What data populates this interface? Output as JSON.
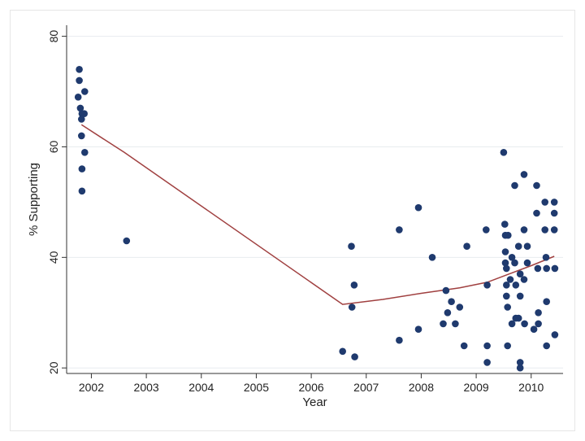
{
  "chart_data": {
    "type": "scatter",
    "xlabel": "Year",
    "ylabel": "% Supporting",
    "xlim": [
      2001.55,
      2010.58
    ],
    "ylim": [
      19,
      82
    ],
    "xticks": [
      2002,
      2003,
      2004,
      2005,
      2006,
      2007,
      2008,
      2009,
      2010
    ],
    "yticks": [
      20,
      40,
      60,
      80
    ],
    "grid": "horizontal",
    "colors": {
      "points": "#1f3a6e",
      "fit_line": "#a04040",
      "grid": "#e8ecef",
      "axis": "#333333"
    },
    "series": [
      {
        "type": "scatter",
        "points": [
          [
            2001.78,
            74
          ],
          [
            2001.78,
            72
          ],
          [
            2001.76,
            69
          ],
          [
            2001.8,
            67
          ],
          [
            2001.83,
            66
          ],
          [
            2001.87,
            66
          ],
          [
            2001.82,
            65
          ],
          [
            2001.88,
            70
          ],
          [
            2001.82,
            62
          ],
          [
            2001.88,
            59
          ],
          [
            2001.83,
            56
          ],
          [
            2001.83,
            52
          ],
          [
            2002.64,
            43
          ],
          [
            2006.57,
            23
          ],
          [
            2006.73,
            42
          ],
          [
            2006.74,
            31
          ],
          [
            2006.78,
            35
          ],
          [
            2006.79,
            22
          ],
          [
            2007.6,
            45
          ],
          [
            2007.6,
            25
          ],
          [
            2007.95,
            49
          ],
          [
            2007.95,
            27
          ],
          [
            2008.2,
            40
          ],
          [
            2008.4,
            28
          ],
          [
            2008.45,
            34
          ],
          [
            2008.48,
            30
          ],
          [
            2008.55,
            32
          ],
          [
            2008.62,
            28
          ],
          [
            2008.7,
            31
          ],
          [
            2008.78,
            24
          ],
          [
            2008.83,
            42
          ],
          [
            2009.18,
            45
          ],
          [
            2009.2,
            35
          ],
          [
            2009.2,
            24
          ],
          [
            2009.2,
            21
          ],
          [
            2009.5,
            59
          ],
          [
            2009.52,
            46
          ],
          [
            2009.53,
            44
          ],
          [
            2009.53,
            41
          ],
          [
            2009.53,
            39
          ],
          [
            2009.55,
            38
          ],
          [
            2009.55,
            35
          ],
          [
            2009.55,
            33
          ],
          [
            2009.57,
            31
          ],
          [
            2009.57,
            24
          ],
          [
            2009.58,
            44
          ],
          [
            2009.62,
            36
          ],
          [
            2009.65,
            40
          ],
          [
            2009.65,
            28
          ],
          [
            2009.7,
            53
          ],
          [
            2009.7,
            39
          ],
          [
            2009.72,
            35
          ],
          [
            2009.72,
            29
          ],
          [
            2009.77,
            42
          ],
          [
            2009.77,
            29
          ],
          [
            2009.8,
            37
          ],
          [
            2009.8,
            33
          ],
          [
            2009.8,
            21
          ],
          [
            2009.8,
            20
          ],
          [
            2009.87,
            55
          ],
          [
            2009.87,
            45
          ],
          [
            2009.87,
            36
          ],
          [
            2009.88,
            28
          ],
          [
            2009.93,
            42
          ],
          [
            2009.93,
            39
          ],
          [
            2010.05,
            27
          ],
          [
            2010.1,
            53
          ],
          [
            2010.1,
            48
          ],
          [
            2010.12,
            38
          ],
          [
            2010.13,
            30
          ],
          [
            2010.13,
            28
          ],
          [
            2010.25,
            50
          ],
          [
            2010.25,
            45
          ],
          [
            2010.27,
            40
          ],
          [
            2010.28,
            38
          ],
          [
            2010.28,
            32
          ],
          [
            2010.28,
            24
          ],
          [
            2010.42,
            50
          ],
          [
            2010.42,
            48
          ],
          [
            2010.42,
            45
          ],
          [
            2010.43,
            38
          ],
          [
            2010.43,
            26
          ]
        ]
      },
      {
        "type": "line",
        "points": [
          [
            2001.82,
            64
          ],
          [
            2002.6,
            59
          ],
          [
            2006.57,
            31.5
          ],
          [
            2007.3,
            32.4
          ],
          [
            2008.0,
            33.5
          ],
          [
            2008.7,
            34.5
          ],
          [
            2009.2,
            35.5
          ],
          [
            2009.6,
            37.0
          ],
          [
            2010.0,
            38.5
          ],
          [
            2010.42,
            40.2
          ]
        ]
      }
    ]
  }
}
